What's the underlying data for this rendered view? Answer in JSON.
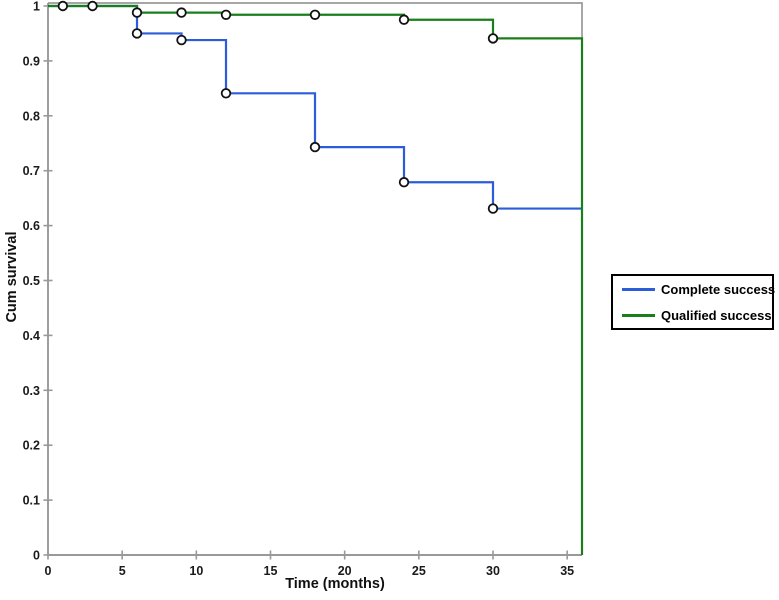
{
  "chart_data": {
    "type": "line",
    "subtype": "kaplan-meier-step",
    "title": "",
    "xlabel": "Time (months)",
    "ylabel": "Cum survival",
    "xlim": [
      0,
      36
    ],
    "ylim": [
      0,
      1
    ],
    "x_ticks": [
      0,
      5,
      10,
      15,
      20,
      25,
      30,
      35
    ],
    "x_tick_labels": [
      "0",
      "5",
      "10",
      "15",
      "20",
      "25",
      "30",
      "35"
    ],
    "y_ticks": [
      0,
      0.1,
      0.2,
      0.3,
      0.4,
      0.5,
      0.6,
      0.7,
      0.8,
      0.9,
      1
    ],
    "y_tick_labels": [
      "0",
      "0.1",
      "0.2",
      "0.3",
      "0.4",
      "0.5",
      "0.6",
      "0.7",
      "0.8",
      "0.9",
      "1"
    ],
    "grid": false,
    "legend_position": "right-outside",
    "axis_color": "#999999",
    "marker_style": {
      "shape": "circle",
      "fill": "#ffffff",
      "stroke": "#111111"
    },
    "series": [
      {
        "name": "Complete success",
        "color": "#2b5cd9",
        "steps": [
          [
            0,
            1
          ],
          [
            6,
            1
          ],
          [
            6,
            0.95
          ],
          [
            9,
            0.95
          ],
          [
            9,
            0.938
          ],
          [
            12,
            0.938
          ],
          [
            12,
            0.841
          ],
          [
            18,
            0.841
          ],
          [
            18,
            0.743
          ],
          [
            24,
            0.743
          ],
          [
            24,
            0.679
          ],
          [
            30,
            0.679
          ],
          [
            30,
            0.631
          ],
          [
            36,
            0.631
          ]
        ],
        "censor_markers": [
          [
            1,
            1
          ],
          [
            3,
            1
          ],
          [
            6,
            0.95
          ],
          [
            9,
            0.938
          ],
          [
            12,
            0.841
          ],
          [
            18,
            0.743
          ],
          [
            24,
            0.679
          ],
          [
            30,
            0.631
          ]
        ]
      },
      {
        "name": "Qualified success",
        "color": "#1a7f1a",
        "steps": [
          [
            0,
            1
          ],
          [
            6,
            1
          ],
          [
            6,
            0.988
          ],
          [
            12,
            0.988
          ],
          [
            12,
            0.984
          ],
          [
            24,
            0.984
          ],
          [
            24,
            0.975
          ],
          [
            30,
            0.975
          ],
          [
            30,
            0.941
          ],
          [
            36,
            0.941
          ],
          [
            36,
            0
          ]
        ],
        "censor_markers": [
          [
            6,
            0.988
          ],
          [
            9,
            0.988
          ],
          [
            12,
            0.984
          ],
          [
            18,
            0.984
          ],
          [
            24,
            0.975
          ],
          [
            30,
            0.941
          ]
        ]
      }
    ]
  }
}
